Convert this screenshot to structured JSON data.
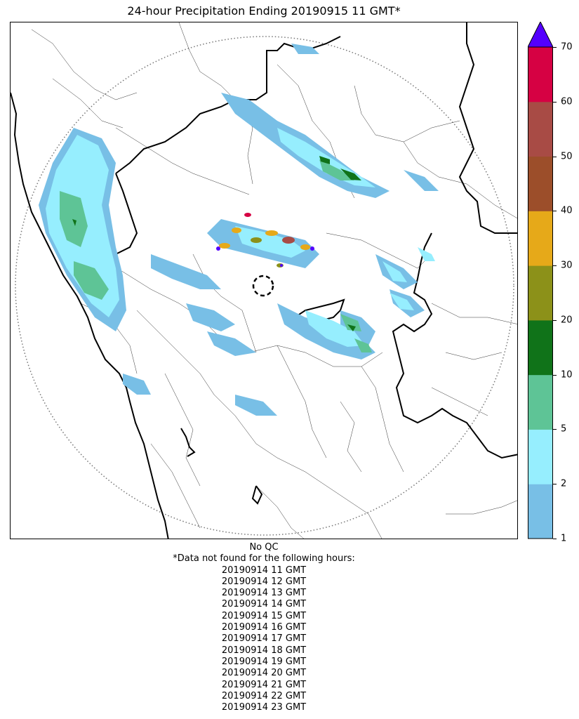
{
  "title": "24-hour Precipitation Ending 20190915 11 GMT*",
  "footer": {
    "qc_status": "No QC",
    "missing_header": "*Data not found for the following hours:",
    "missing_hours": [
      "20190914 11 GMT",
      "20190914 12 GMT",
      "20190914 13 GMT",
      "20190914 14 GMT",
      "20190914 15 GMT",
      "20190914 16 GMT",
      "20190914 17 GMT",
      "20190914 18 GMT",
      "20190914 19 GMT",
      "20190914 20 GMT",
      "20190914 21 GMT",
      "20190914 22 GMT",
      "20190914 23 GMT"
    ]
  },
  "colorbar": {
    "ticks": [
      "1",
      "2",
      "5",
      "10",
      "20",
      "30",
      "40",
      "50",
      "60",
      "70"
    ],
    "bins": [
      {
        "color": "#78bfe6"
      },
      {
        "color": "#96eefe"
      },
      {
        "color": "#5ec496"
      },
      {
        "color": "#107319"
      },
      {
        "color": "#8c9119"
      },
      {
        "color": "#e6a919"
      },
      {
        "color": "#9c4e2a"
      },
      {
        "color": "#a84b45"
      },
      {
        "color": "#d60143"
      }
    ],
    "extend_color": "#5300fe"
  }
}
